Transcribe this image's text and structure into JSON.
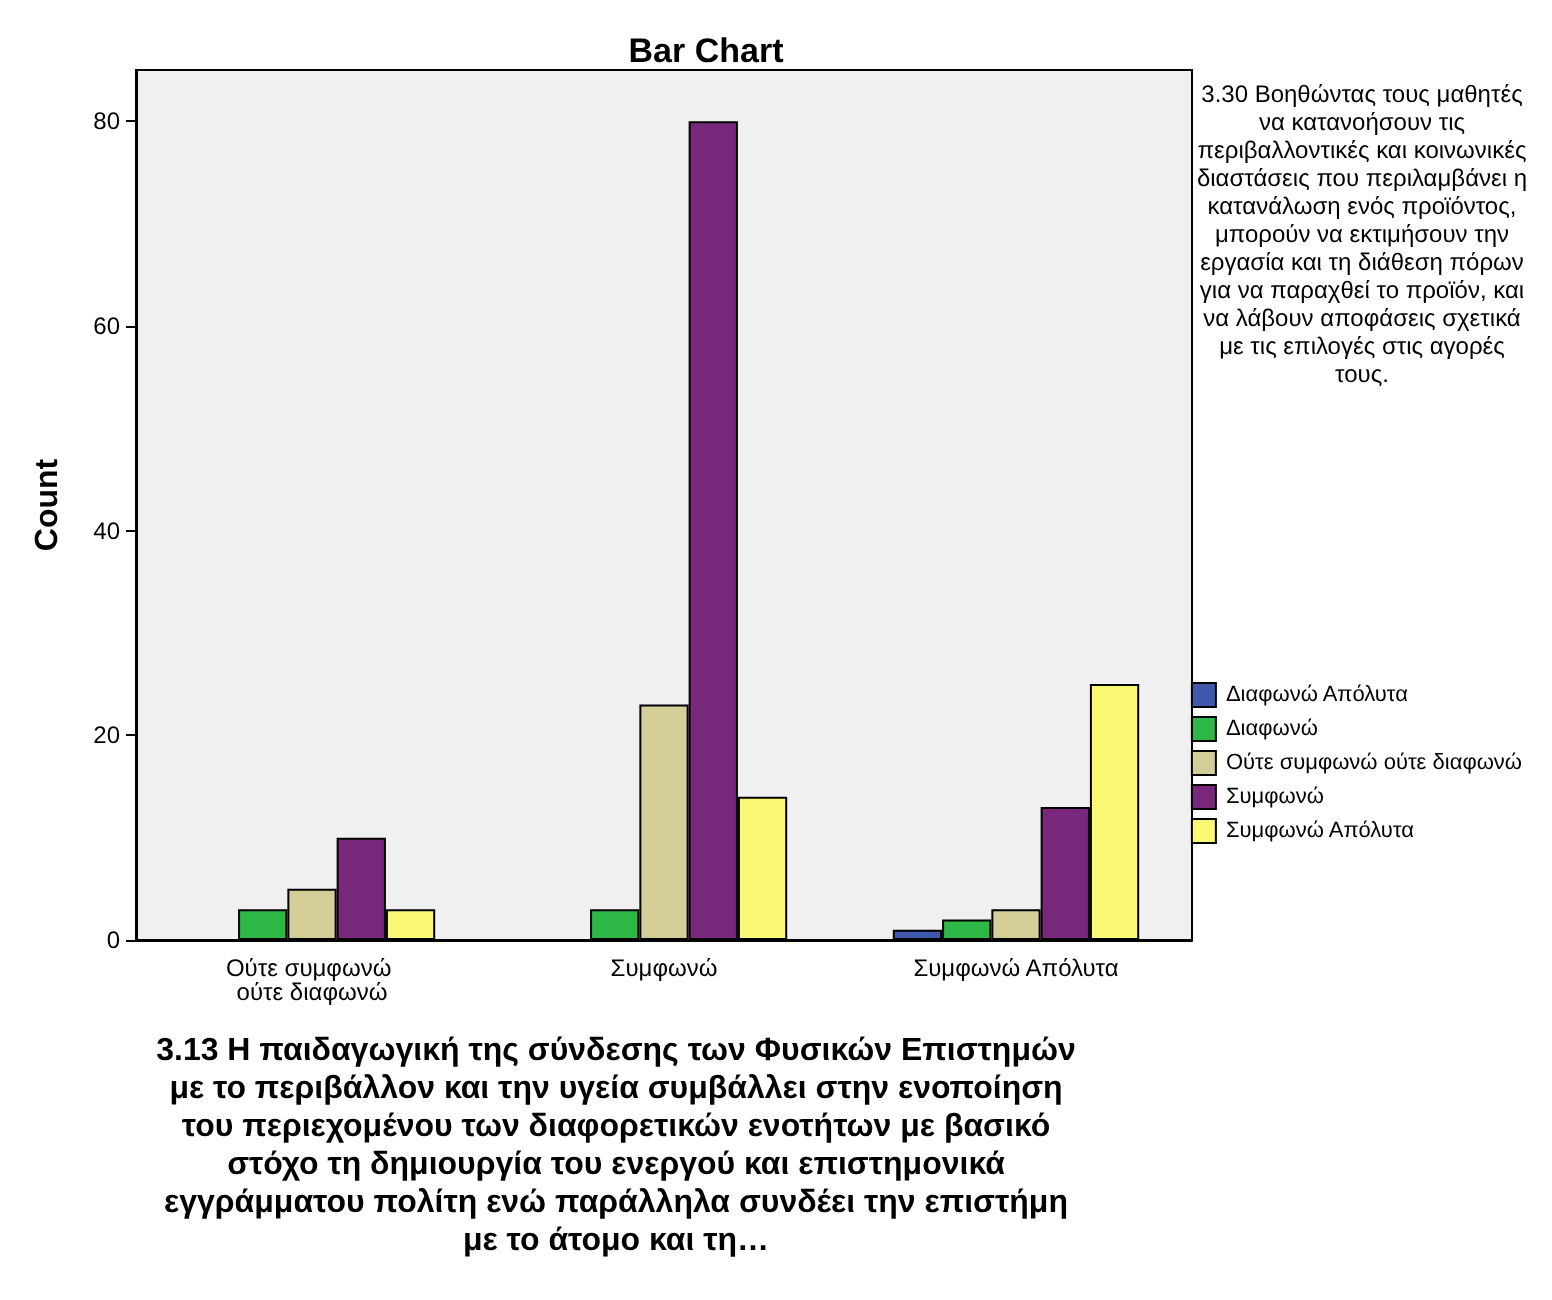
{
  "chart_data": {
    "type": "bar",
    "title": "Bar Chart",
    "xlabel": "3.13 Η παιδαγωγική της σύνδεσης των Φυσικών Επιστημών με το περιβάλλον και την υγεία συμβάλλει στην ενοποίηση του περιεχομένου των διαφορετικών ενοτήτων με βασικό στόχο τη δημιουργία του ενεργού και επιστημονικά εγγράμματου πολίτη ενώ παράλληλα συνδέει την επιστήμη με το άτομο και τη…",
    "ylabel": "Count",
    "legend_title": "3.30 Βοηθώντας τους μαθητές να κατανοήσουν τις περιβαλλοντικές και κοινωνικές διαστάσεις που περιλαμβάνει η κατανάλωση ενός προϊόντος, μπορούν να εκτιμήσουν την εργασία και τη διάθεση πόρων για να παραχθεί το προϊόν, και να λάβουν αποφάσεις σχετικά με τις επιλογές στις αγορές τους.",
    "categories": [
      "Ούτε συμφωνώ ούτε διαφωνώ",
      "Συμφωνώ",
      "Συμφωνώ Απόλυτα"
    ],
    "series": [
      {
        "name": "Διαφωνώ Απόλυτα",
        "color": "#3e58ac",
        "values": [
          null,
          null,
          1
        ]
      },
      {
        "name": "Διαφωνώ",
        "color": "#2eb848",
        "values": [
          3,
          3,
          2
        ]
      },
      {
        "name": "Ούτε συμφωνώ ούτε διαφωνώ",
        "color": "#d3ce97",
        "values": [
          5,
          23,
          3
        ]
      },
      {
        "name": "Συμφωνώ",
        "color": "#79287c",
        "values": [
          10,
          80,
          13
        ]
      },
      {
        "name": "Συμφωνώ Απόλυτα",
        "color": "#fbf873",
        "values": [
          3,
          14,
          25
        ]
      }
    ],
    "ylim": [
      0,
      85
    ],
    "yticks": [
      0,
      20,
      40,
      60,
      80
    ],
    "grid": false,
    "legend": "right"
  }
}
